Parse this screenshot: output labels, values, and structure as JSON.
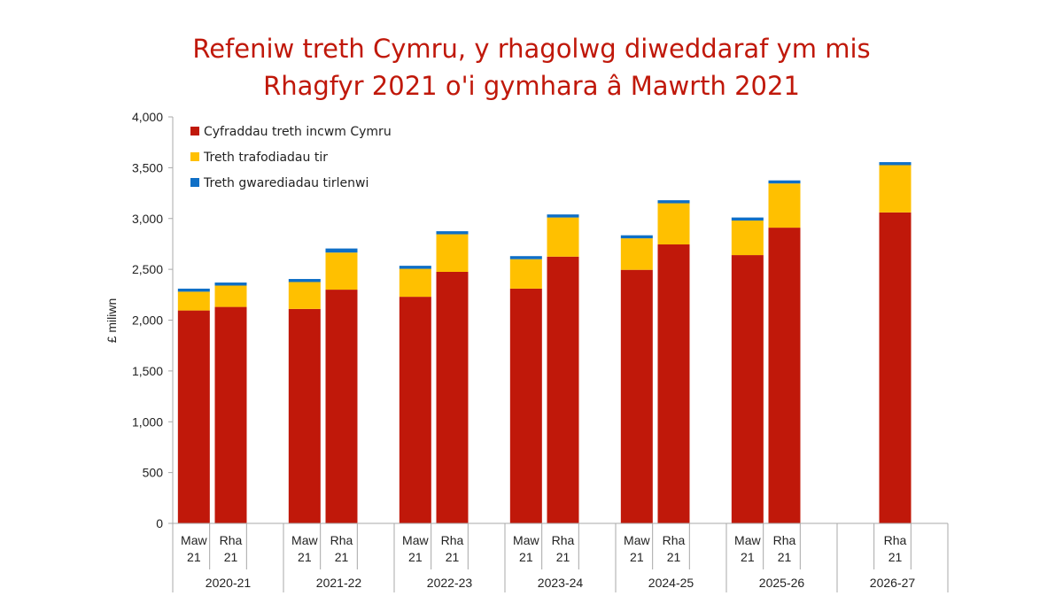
{
  "chart_data": {
    "type": "bar",
    "stacked": true,
    "title_lines": [
      "Refeniw treth Cymru, y rhagolwg diweddaraf ym mis",
      "Rhagfyr 2021 o'i gymhara â Mawrth 2021"
    ],
    "ylabel": "£ miliwn",
    "ylim": [
      0,
      4000
    ],
    "yticks": [
      0,
      500,
      1000,
      1500,
      2000,
      2500,
      3000,
      3500,
      4000
    ],
    "ytick_labels": [
      "0",
      "500",
      "1,000",
      "1,500",
      "2,000",
      "2,500",
      "3,000",
      "3,500",
      "4,000"
    ],
    "grid": false,
    "legend_position": "top-left",
    "groups": [
      {
        "label": "2020-21",
        "bars": [
          {
            "line1": "Maw",
            "line2": "21",
            "values": [
              2095,
              185,
              30
            ]
          },
          {
            "line1": "Rha",
            "line2": "21",
            "values": [
              2130,
              210,
              30
            ]
          }
        ]
      },
      {
        "label": "2021-22",
        "bars": [
          {
            "line1": "Maw",
            "line2": "21",
            "values": [
              2110,
              265,
              30
            ]
          },
          {
            "line1": "Rha",
            "line2": "21",
            "values": [
              2300,
              365,
              40
            ]
          }
        ]
      },
      {
        "label": "2022-23",
        "bars": [
          {
            "line1": "Maw",
            "line2": "21",
            "values": [
              2230,
              275,
              30
            ]
          },
          {
            "line1": "Rha",
            "line2": "21",
            "values": [
              2475,
              370,
              30
            ]
          }
        ]
      },
      {
        "label": "2023-24",
        "bars": [
          {
            "line1": "Maw",
            "line2": "21",
            "values": [
              2310,
              290,
              30
            ]
          },
          {
            "line1": "Rha",
            "line2": "21",
            "values": [
              2625,
              385,
              30
            ]
          }
        ]
      },
      {
        "label": "2024-25",
        "bars": [
          {
            "line1": "Maw",
            "line2": "21",
            "values": [
              2495,
              310,
              30
            ]
          },
          {
            "line1": "Rha",
            "line2": "21",
            "values": [
              2745,
              405,
              30
            ]
          }
        ]
      },
      {
        "label": "2025-26",
        "bars": [
          {
            "line1": "Maw",
            "line2": "21",
            "values": [
              2640,
              340,
              30
            ]
          },
          {
            "line1": "Rha",
            "line2": "21",
            "values": [
              2910,
              435,
              30
            ]
          }
        ]
      },
      {
        "label": "2026-27",
        "bars": [
          null,
          {
            "line1": "Rha",
            "line2": "21",
            "values": [
              3060,
              465,
              30
            ]
          }
        ]
      }
    ],
    "series": [
      {
        "name": "Cyfraddau treth incwm Cymru",
        "color": "#c0180a"
      },
      {
        "name": "Treth trafodiadau tir",
        "color": "#ffc000"
      },
      {
        "name": "Treth gwarediadau tirlenwi",
        "color": "#0f6fc6"
      }
    ]
  }
}
